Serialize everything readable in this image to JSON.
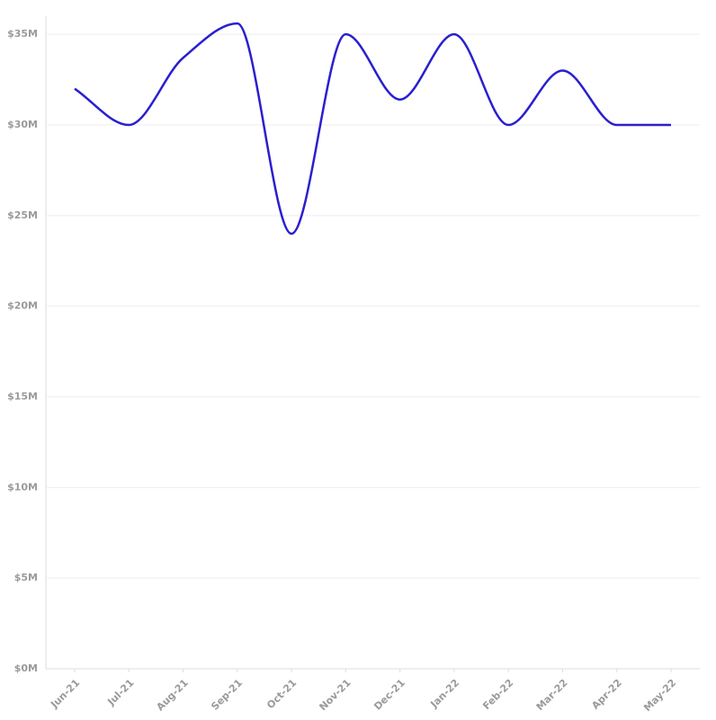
{
  "chart_data": {
    "type": "line",
    "categories": [
      "Jun-21",
      "Jul-21",
      "Aug-21",
      "Sep-21",
      "Oct-21",
      "Nov-21",
      "Dec-21",
      "Jan-22",
      "Feb-22",
      "Mar-22",
      "Apr-22",
      "May-22"
    ],
    "series": [
      {
        "color": "#2a1fcf",
        "values": [
          32000000,
          30000000,
          33700000,
          35600000,
          24000000,
          35000000,
          31400000,
          35000000,
          30000000,
          33000000,
          30000000,
          30000000
        ]
      }
    ],
    "ylim": [
      0,
      36000000
    ],
    "yticks": [
      {
        "value": 0,
        "label": "$0M"
      },
      {
        "value": 5000000,
        "label": "$5M"
      },
      {
        "value": 10000000,
        "label": "$10M"
      },
      {
        "value": 15000000,
        "label": "$15M"
      },
      {
        "value": 20000000,
        "label": "$20M"
      },
      {
        "value": 25000000,
        "label": "$25M"
      },
      {
        "value": 30000000,
        "label": "$30M"
      },
      {
        "value": 35000000,
        "label": "$35M"
      }
    ],
    "grid": true
  }
}
